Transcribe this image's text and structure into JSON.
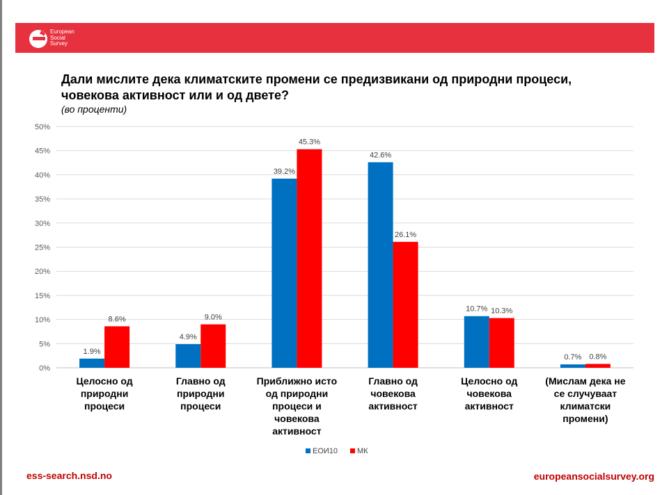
{
  "brand": {
    "logo_lines": [
      "European",
      "Social",
      "Survey"
    ],
    "band_color": "#e8313f"
  },
  "footer": {
    "left": "ess-search.nsd.no",
    "right": "europeansocialsurvey.org"
  },
  "chart_data": {
    "type": "bar",
    "title": "Дали мислите дека климатските промени се предизвикани од природни процеси, човекова активност или и од двете?",
    "subtitle": "(во проценти)",
    "categories": [
      [
        "Целосно од",
        "природни",
        "процеси"
      ],
      [
        "Главно од",
        "природни",
        "процеси"
      ],
      [
        "Приближно исто",
        "од природни",
        "процеси и",
        "човекова",
        "активност"
      ],
      [
        "Главно од",
        "човекова",
        "активност"
      ],
      [
        "Целосно од",
        "човекова",
        "активност"
      ],
      [
        "(Мислам дека не",
        "се случуваат",
        "климатски",
        "промени)"
      ]
    ],
    "series": [
      {
        "name": "ЕОИ10",
        "color": "#0070c0",
        "values": [
          1.9,
          4.9,
          39.2,
          42.6,
          10.7,
          0.7
        ],
        "labels": [
          "1.9%",
          "4.9%",
          "39.2%",
          "42.6%",
          "10.7%",
          "0.7%"
        ]
      },
      {
        "name": "МК",
        "color": "#ff0000",
        "values": [
          8.6,
          9.0,
          45.3,
          26.1,
          10.3,
          0.8
        ],
        "labels": [
          "8.6%",
          "9.0%",
          "45.3%",
          "26.1%",
          "10.3%",
          "0.8%"
        ]
      }
    ],
    "yticks": [
      0,
      5,
      10,
      15,
      20,
      25,
      30,
      35,
      40,
      45,
      50
    ],
    "ytick_labels": [
      "0%",
      "5%",
      "10%",
      "15%",
      "20%",
      "25%",
      "30%",
      "35%",
      "40%",
      "45%",
      "50%"
    ],
    "ylim": [
      0,
      50
    ],
    "grid": true,
    "legend_position": "bottom"
  }
}
